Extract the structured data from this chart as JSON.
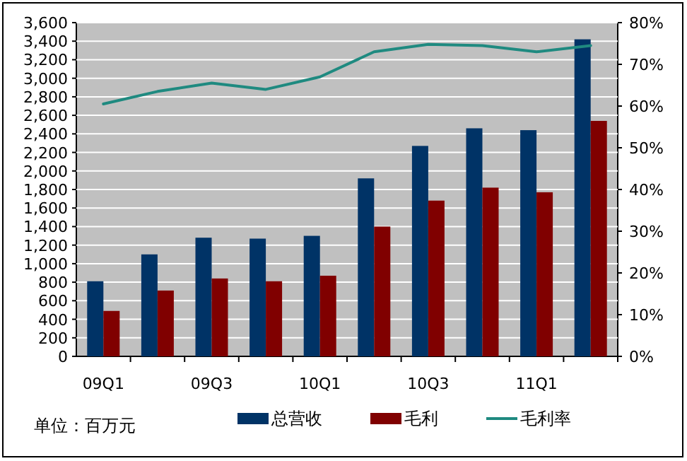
{
  "chart_data": {
    "type": "bar",
    "categories": [
      "09Q1",
      null,
      "09Q3",
      null,
      "10Q1",
      null,
      "10Q3",
      null,
      "11Q1",
      null
    ],
    "series": [
      {
        "name": "总营收",
        "color": "#003366",
        "values": [
          810,
          1100,
          1280,
          1270,
          1300,
          1920,
          2270,
          2460,
          2440,
          3420
        ]
      },
      {
        "name": "毛利",
        "color": "#800000",
        "values": [
          490,
          710,
          840,
          810,
          870,
          1400,
          1680,
          1820,
          1770,
          2540
        ]
      },
      {
        "name": "毛利率",
        "type": "line",
        "axis": "y2",
        "color": "#1f8a80",
        "values": [
          60.5,
          63.5,
          65.5,
          64,
          67,
          73,
          74.8,
          74.5,
          73,
          74.5
        ]
      }
    ],
    "ylim": [
      0,
      3600
    ],
    "yticks": [
      0,
      200,
      400,
      600,
      800,
      {
        "value": 1000,
        "label": "1,000"
      },
      {
        "value": 1200,
        "label": "1,200"
      },
      {
        "value": 1400,
        "label": "1,400"
      },
      {
        "value": 1600,
        "label": "1,600"
      },
      {
        "value": 1800,
        "label": "1,800"
      },
      {
        "value": 2000,
        "label": "2,000"
      },
      {
        "value": 2200,
        "label": "2,200"
      },
      {
        "value": 2400,
        "label": "2,400"
      },
      {
        "value": 2600,
        "label": "2,600"
      },
      {
        "value": 2800,
        "label": "2,800"
      },
      {
        "value": 3000,
        "label": "3,000"
      },
      {
        "value": 3200,
        "label": "3,200"
      },
      {
        "value": 3400,
        "label": "3,400"
      },
      {
        "value": 3600,
        "label": "3,600"
      }
    ],
    "y2lim": [
      0,
      80
    ],
    "y2ticks": [
      {
        "value": 0,
        "label": "0%"
      },
      {
        "value": 10,
        "label": "10%"
      },
      {
        "value": 20,
        "label": "20%"
      },
      {
        "value": 30,
        "label": "30%"
      },
      {
        "value": 40,
        "label": "40%"
      },
      {
        "value": 50,
        "label": "50%"
      },
      {
        "value": 60,
        "label": "60%"
      },
      {
        "value": 70,
        "label": "70%"
      },
      {
        "value": 80,
        "label": "80%"
      }
    ],
    "grid": "y",
    "legend": "bottom",
    "annotations": [
      "单位：百万元"
    ]
  }
}
